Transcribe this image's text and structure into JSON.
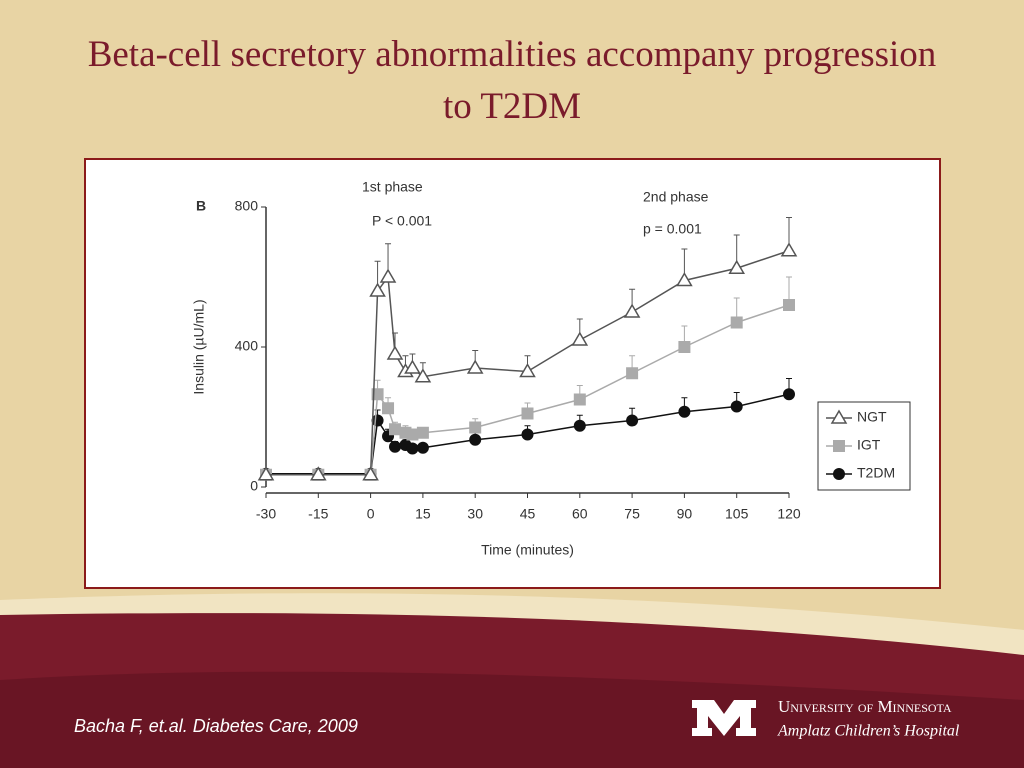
{
  "title": "Beta-cell secretory abnormalities accompany progression to T2DM",
  "citation": "Bacha F, et.al. Diabetes Care, 2009",
  "logo": {
    "name": "University of Minnesota",
    "subtitle": "Amplatz Children’s Hospital"
  },
  "chart_data": {
    "type": "line",
    "panel_label": "B",
    "annotations": [
      "1st phase",
      "P < 0.001",
      "2nd phase",
      "p = 0.001"
    ],
    "xlabel": "Time (minutes)",
    "ylabel": "Insulin (µU/mL)",
    "x": [
      -30,
      -15,
      0,
      2,
      5,
      7,
      10,
      12,
      15,
      30,
      45,
      60,
      75,
      90,
      105,
      120
    ],
    "series": [
      {
        "name": "NGT",
        "color": "#555555",
        "marker": "triangle",
        "values": [
          35,
          35,
          35,
          560,
          600,
          380,
          330,
          340,
          315,
          340,
          330,
          420,
          500,
          590,
          625,
          675
        ],
        "errors": [
          0,
          0,
          0,
          85,
          95,
          60,
          45,
          40,
          40,
          50,
          45,
          60,
          65,
          90,
          95,
          95
        ]
      },
      {
        "name": "IGT",
        "color": "#aaaaaa",
        "marker": "square",
        "values": [
          35,
          35,
          35,
          265,
          225,
          165,
          155,
          150,
          155,
          170,
          210,
          250,
          325,
          400,
          470,
          520
        ],
        "errors": [
          0,
          0,
          0,
          40,
          30,
          20,
          20,
          15,
          15,
          25,
          30,
          40,
          50,
          60,
          70,
          80
        ]
      },
      {
        "name": "T2DM",
        "color": "#111111",
        "marker": "circle",
        "values": [
          38,
          38,
          38,
          190,
          145,
          115,
          120,
          110,
          112,
          135,
          150,
          175,
          190,
          215,
          230,
          265
        ],
        "errors": [
          0,
          0,
          0,
          30,
          20,
          15,
          15,
          12,
          12,
          20,
          25,
          30,
          35,
          40,
          40,
          45
        ]
      }
    ],
    "xlim": [
      -30,
      120
    ],
    "xticks": [
      -30,
      -15,
      0,
      15,
      30,
      45,
      60,
      75,
      90,
      105,
      120
    ],
    "ylim": [
      0,
      800
    ],
    "yticks": [
      0,
      400,
      800
    ],
    "legend": "right"
  }
}
